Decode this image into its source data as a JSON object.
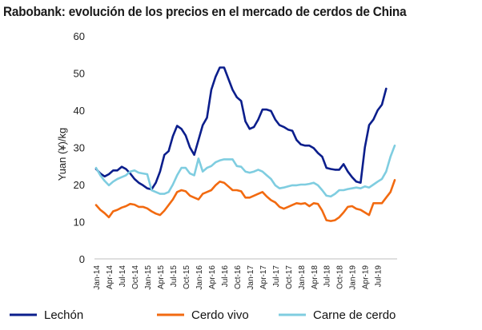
{
  "chart_data": {
    "type": "line",
    "title": "Rabobank: evolución de los precios en el mercado de cerdos de China",
    "ylabel": "Yuan (¥)/kg",
    "xlabel": "",
    "ylim": [
      0,
      60
    ],
    "yticks": [
      0,
      10,
      20,
      30,
      40,
      50,
      60
    ],
    "grid": false,
    "legend_position": "bottom",
    "x_start": "Jan-14",
    "x_end": "Aug-19",
    "xtick_labels": [
      "Jan-14",
      "Apr-14",
      "Jul-14",
      "Oct-14",
      "Jan-15",
      "Apr-15",
      "Jul-15",
      "Oct-15",
      "Jan-16",
      "Apr-16",
      "Jul-16",
      "Oct-16",
      "Jan-17",
      "Apr-17",
      "Jul-17",
      "Oct-17",
      "Jan-18",
      "Apr-18",
      "Jul-18",
      "Oct-18",
      "Jan-19",
      "Apr-19",
      "Jul-19"
    ],
    "x_month_index": [
      0,
      3,
      6,
      9,
      12,
      15,
      18,
      21,
      24,
      27,
      30,
      33,
      36,
      39,
      42,
      45,
      48,
      51,
      54,
      57,
      60,
      63,
      66
    ],
    "series": [
      {
        "name": "Lechón",
        "color": "#0b1e8c",
        "points": [
          [
            0,
            24.2
          ],
          [
            1,
            23
          ],
          [
            2,
            22.2
          ],
          [
            3,
            22.8
          ],
          [
            4,
            23.8
          ],
          [
            5,
            23.8
          ],
          [
            6,
            24.8
          ],
          [
            7,
            24.2
          ],
          [
            8,
            23
          ],
          [
            9,
            21.5
          ],
          [
            10,
            20.5
          ],
          [
            11,
            19.8
          ],
          [
            12,
            19
          ],
          [
            13,
            18.7
          ],
          [
            14,
            20.5
          ],
          [
            15,
            23.5
          ],
          [
            16,
            28
          ],
          [
            17,
            29
          ],
          [
            18,
            33
          ],
          [
            19,
            35.8
          ],
          [
            20,
            35
          ],
          [
            21,
            33.2
          ],
          [
            22,
            30
          ],
          [
            23,
            28
          ],
          [
            24,
            32
          ],
          [
            25,
            36
          ],
          [
            26,
            38
          ],
          [
            27,
            45.5
          ],
          [
            28,
            49
          ],
          [
            29,
            51.5
          ],
          [
            30,
            51.5
          ],
          [
            31,
            48.5
          ],
          [
            32,
            45.5
          ],
          [
            33,
            43.5
          ],
          [
            34,
            42.5
          ],
          [
            35,
            37
          ],
          [
            36,
            35
          ],
          [
            37,
            35.5
          ],
          [
            38,
            37.5
          ],
          [
            39,
            40.2
          ],
          [
            40,
            40.2
          ],
          [
            41,
            39.8
          ],
          [
            42,
            37.5
          ],
          [
            43,
            36
          ],
          [
            44,
            35.5
          ],
          [
            45,
            34.8
          ],
          [
            46,
            34.5
          ],
          [
            47,
            32
          ],
          [
            48,
            30.8
          ],
          [
            49,
            30.5
          ],
          [
            50,
            30.5
          ],
          [
            51,
            29.8
          ],
          [
            52,
            28.5
          ],
          [
            53,
            27.5
          ],
          [
            54,
            24.5
          ],
          [
            55,
            24.2
          ],
          [
            56,
            24
          ],
          [
            57,
            24
          ],
          [
            58,
            25.5
          ],
          [
            59,
            23.5
          ],
          [
            60,
            22
          ],
          [
            61,
            20.8
          ],
          [
            62,
            20.5
          ],
          [
            63,
            30
          ],
          [
            64,
            36
          ],
          [
            65,
            37.5
          ],
          [
            66,
            40
          ],
          [
            67,
            41.5
          ],
          [
            68,
            45.8
          ]
        ]
      },
      {
        "name": "Cerdo vivo",
        "color": "#f26a10",
        "points": [
          [
            0,
            14.5
          ],
          [
            1,
            13.2
          ],
          [
            2,
            12.3
          ],
          [
            3,
            11.2
          ],
          [
            4,
            12.8
          ],
          [
            5,
            13.2
          ],
          [
            6,
            13.8
          ],
          [
            7,
            14.2
          ],
          [
            8,
            14.8
          ],
          [
            9,
            14.6
          ],
          [
            10,
            14
          ],
          [
            11,
            14
          ],
          [
            12,
            13.6
          ],
          [
            13,
            12.8
          ],
          [
            14,
            12.2
          ],
          [
            15,
            11.8
          ],
          [
            16,
            13
          ],
          [
            17,
            14.5
          ],
          [
            18,
            16
          ],
          [
            19,
            18
          ],
          [
            20,
            18.5
          ],
          [
            21,
            18.2
          ],
          [
            22,
            17
          ],
          [
            23,
            16.5
          ],
          [
            24,
            16
          ],
          [
            25,
            17.5
          ],
          [
            26,
            18
          ],
          [
            27,
            18.5
          ],
          [
            28,
            19.8
          ],
          [
            29,
            20.8
          ],
          [
            30,
            20.5
          ],
          [
            31,
            19.5
          ],
          [
            32,
            18.5
          ],
          [
            33,
            18.5
          ],
          [
            34,
            18.2
          ],
          [
            35,
            16.5
          ],
          [
            36,
            16.5
          ],
          [
            37,
            17
          ],
          [
            38,
            17.5
          ],
          [
            39,
            18
          ],
          [
            40,
            16.8
          ],
          [
            41,
            15.8
          ],
          [
            42,
            15.2
          ],
          [
            43,
            14
          ],
          [
            44,
            13.5
          ],
          [
            45,
            14
          ],
          [
            46,
            14.5
          ],
          [
            47,
            15
          ],
          [
            48,
            14.8
          ],
          [
            49,
            15
          ],
          [
            50,
            14.2
          ],
          [
            51,
            15
          ],
          [
            52,
            14.8
          ],
          [
            53,
            13
          ],
          [
            54,
            10.4
          ],
          [
            55,
            10.2
          ],
          [
            56,
            10.4
          ],
          [
            57,
            11.2
          ],
          [
            58,
            12.5
          ],
          [
            59,
            14
          ],
          [
            60,
            14.2
          ],
          [
            61,
            13.5
          ],
          [
            62,
            13.2
          ],
          [
            63,
            12.5
          ],
          [
            64,
            11.8
          ],
          [
            65,
            15
          ],
          [
            66,
            15
          ],
          [
            67,
            15
          ],
          [
            68,
            16.5
          ],
          [
            69,
            18
          ],
          [
            70,
            21.2
          ]
        ]
      },
      {
        "name": "Carne de cerdo",
        "color": "#7fcde0",
        "points": [
          [
            0,
            24.5
          ],
          [
            1,
            22.5
          ],
          [
            2,
            21
          ],
          [
            3,
            19.8
          ],
          [
            4,
            20.8
          ],
          [
            5,
            21.5
          ],
          [
            6,
            22
          ],
          [
            7,
            22.5
          ],
          [
            8,
            23.5
          ],
          [
            9,
            23.8
          ],
          [
            10,
            23.2
          ],
          [
            11,
            23
          ],
          [
            12,
            22.8
          ],
          [
            13,
            18.5
          ],
          [
            14,
            18
          ],
          [
            15,
            17.5
          ],
          [
            16,
            17.5
          ],
          [
            17,
            18
          ],
          [
            18,
            20
          ],
          [
            19,
            22.5
          ],
          [
            20,
            24.5
          ],
          [
            21,
            24.5
          ],
          [
            22,
            23
          ],
          [
            23,
            22.5
          ],
          [
            24,
            27
          ],
          [
            25,
            23.5
          ],
          [
            26,
            24.5
          ],
          [
            27,
            25
          ],
          [
            28,
            26
          ],
          [
            29,
            26.5
          ],
          [
            30,
            26.8
          ],
          [
            31,
            26.8
          ],
          [
            32,
            26.8
          ],
          [
            33,
            25
          ],
          [
            34,
            24.8
          ],
          [
            35,
            23.5
          ],
          [
            36,
            23.2
          ],
          [
            37,
            23.5
          ],
          [
            38,
            24
          ],
          [
            39,
            23.5
          ],
          [
            40,
            22.5
          ],
          [
            41,
            21.5
          ],
          [
            42,
            19.8
          ],
          [
            43,
            19
          ],
          [
            44,
            19.2
          ],
          [
            45,
            19.5
          ],
          [
            46,
            19.8
          ],
          [
            47,
            19.8
          ],
          [
            48,
            20
          ],
          [
            49,
            20
          ],
          [
            50,
            20.2
          ],
          [
            51,
            20.5
          ],
          [
            52,
            19.8
          ],
          [
            53,
            18.5
          ],
          [
            54,
            17
          ],
          [
            55,
            16.8
          ],
          [
            56,
            17.5
          ],
          [
            57,
            18.5
          ],
          [
            58,
            18.5
          ],
          [
            59,
            18.8
          ],
          [
            60,
            19
          ],
          [
            61,
            19.2
          ],
          [
            62,
            19
          ],
          [
            63,
            19.5
          ],
          [
            64,
            19.2
          ],
          [
            65,
            20
          ],
          [
            66,
            20.8
          ],
          [
            67,
            21.5
          ],
          [
            68,
            23.5
          ],
          [
            69,
            27.5
          ],
          [
            70,
            30.5
          ]
        ]
      }
    ]
  }
}
